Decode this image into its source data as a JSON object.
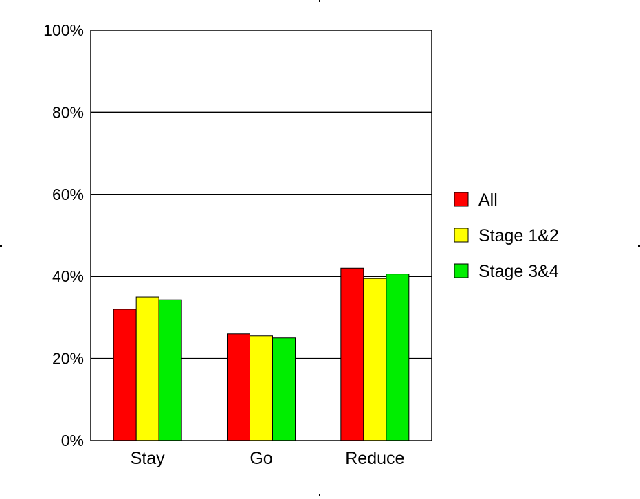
{
  "chart_data": {
    "type": "bar",
    "title": "",
    "xlabel": "",
    "ylabel": "",
    "categories": [
      "Stay",
      "Go",
      "Reduce"
    ],
    "series": [
      {
        "name": "All",
        "values": [
          32,
          26,
          42
        ],
        "color": "#ff0000"
      },
      {
        "name": "Stage 1&2",
        "values": [
          35,
          25.5,
          39.5
        ],
        "color": "#ffff00"
      },
      {
        "name": "Stage 3&4",
        "values": [
          34.3,
          25,
          40.6
        ],
        "color": "#00ee00"
      }
    ],
    "ylim": [
      0,
      100
    ],
    "yticks": [
      0,
      20,
      40,
      60,
      80,
      100
    ],
    "ytick_labels": [
      "0%",
      "20%",
      "40%",
      "60%",
      "80%",
      "100%"
    ],
    "grid": true,
    "legend_position": "right"
  }
}
